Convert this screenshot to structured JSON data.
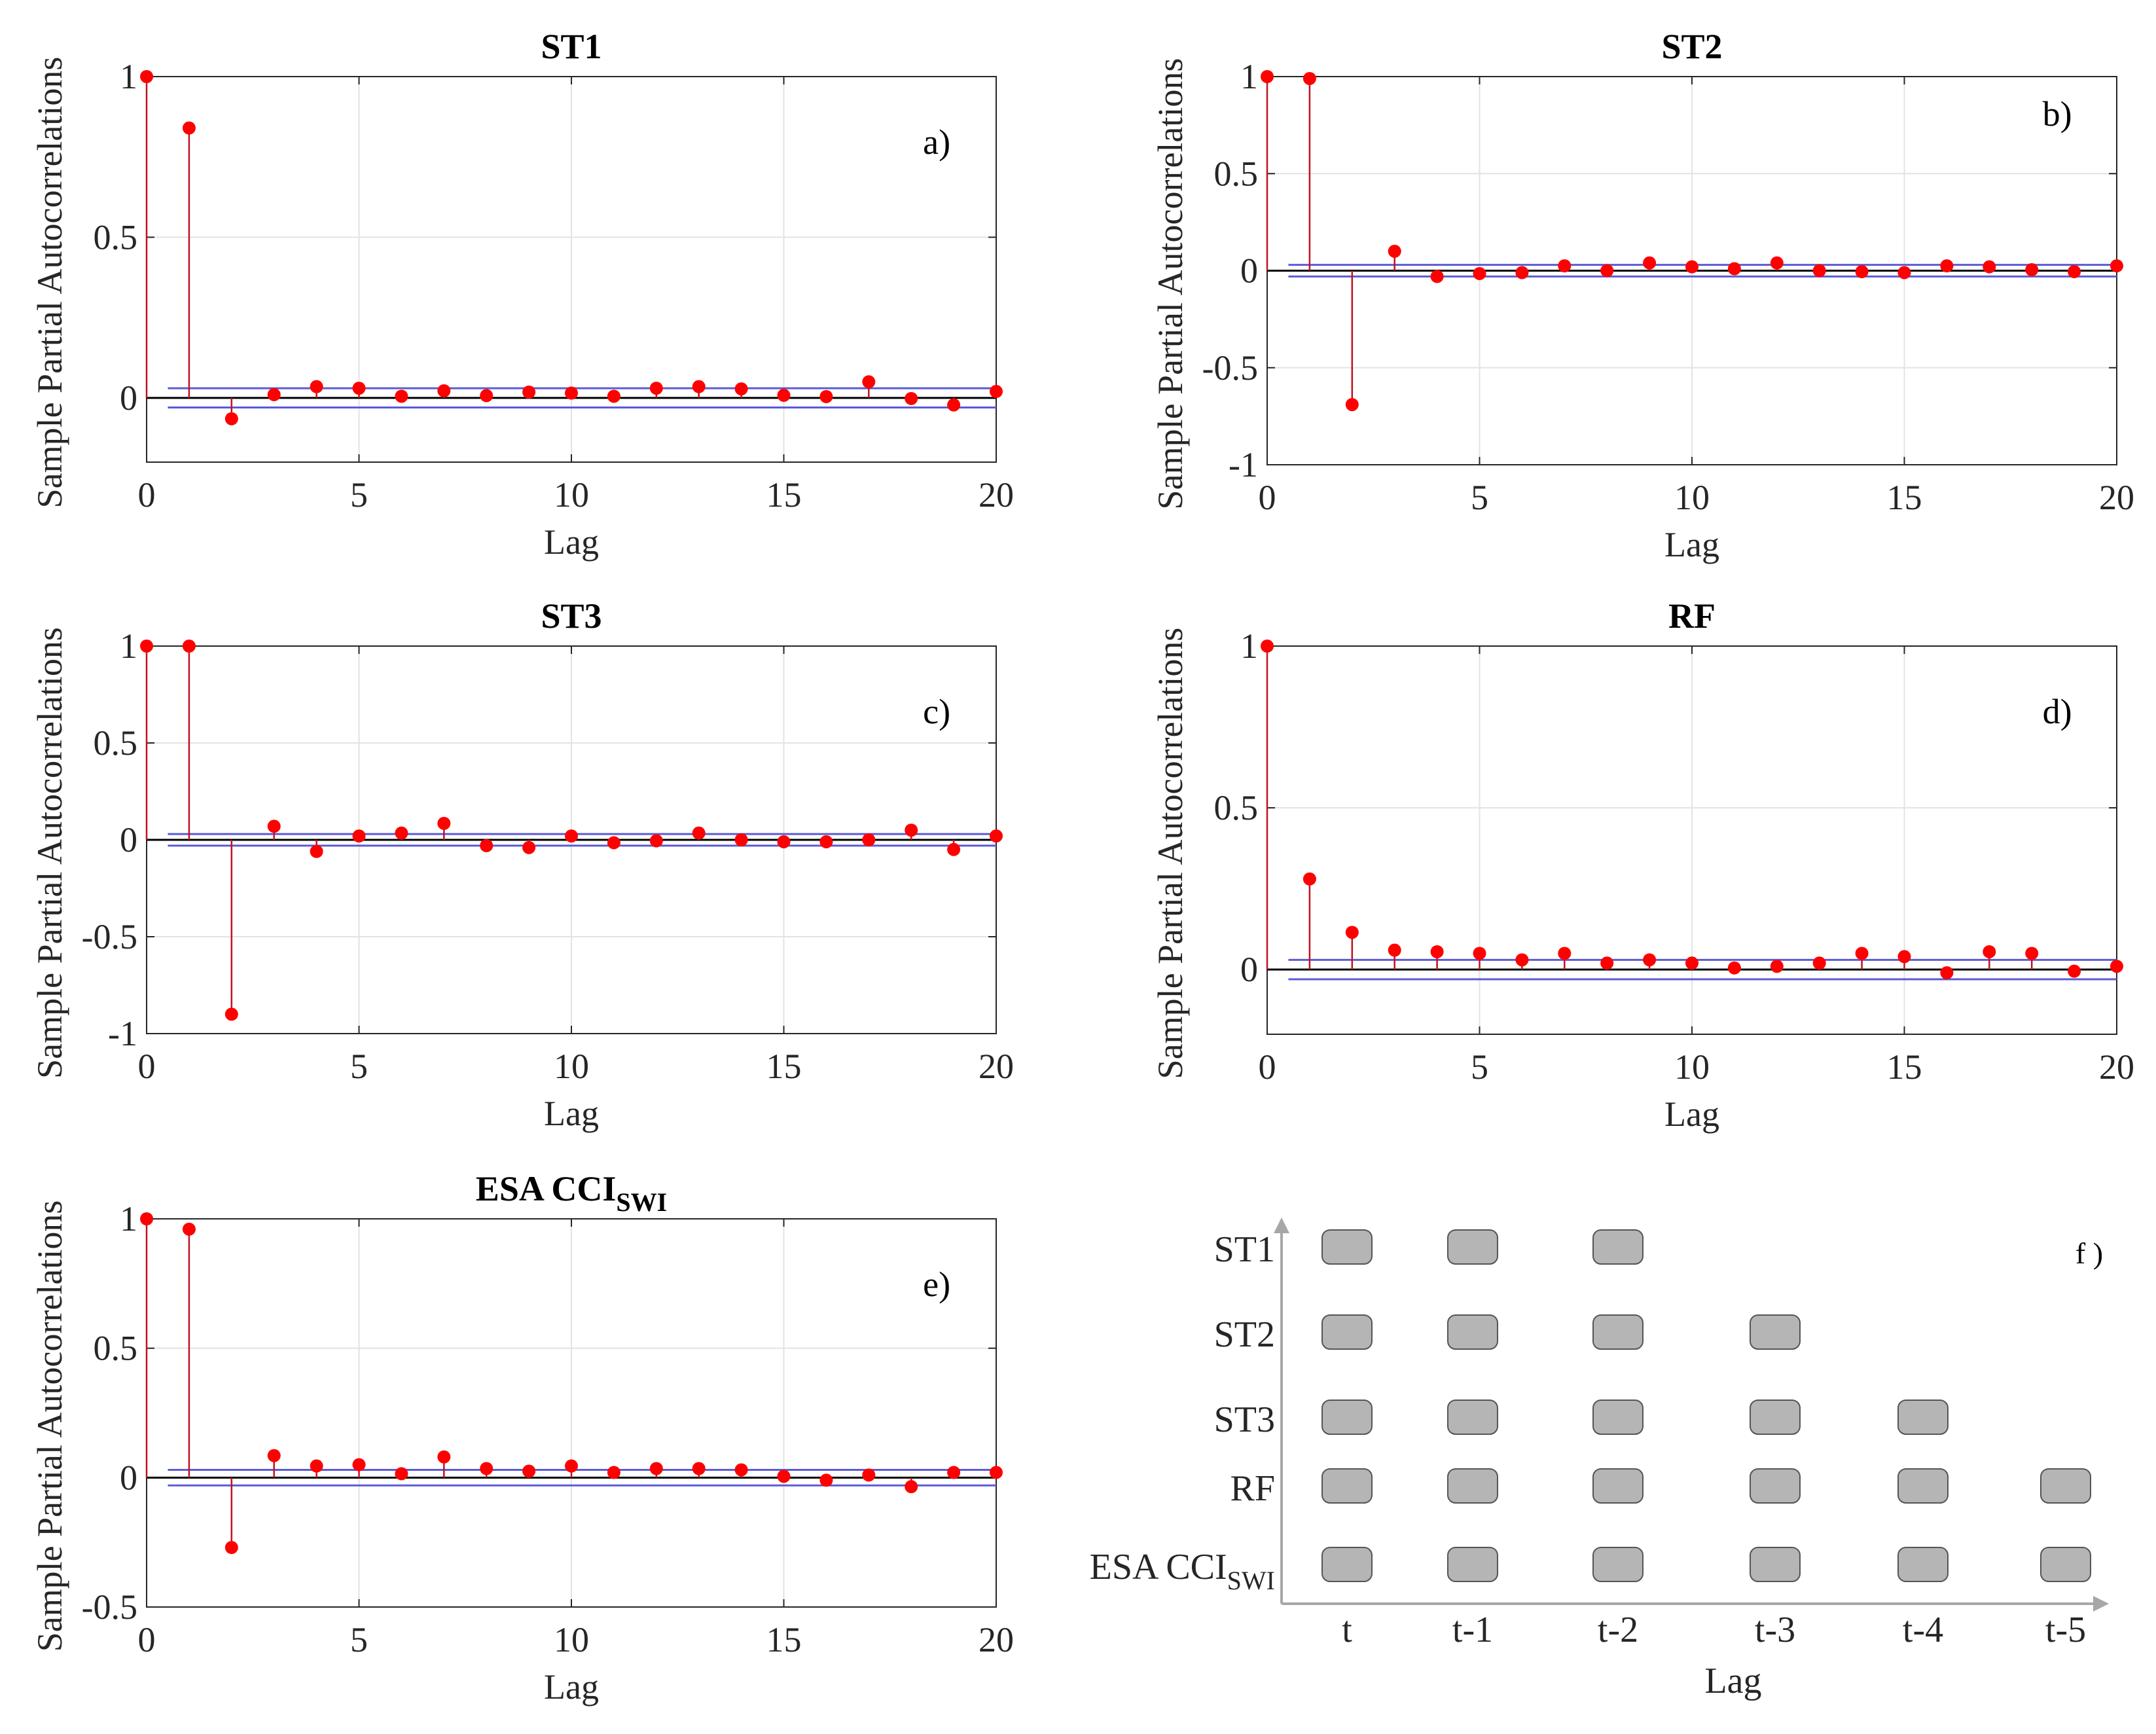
{
  "figure": {
    "y_label": "Sample Partial Autocorrelations",
    "x_label": "Lag",
    "colors": {
      "stem": "#c0121f",
      "marker": "#ff0000",
      "bound": "#5b5bd6",
      "zero": "#000000",
      "grid": "#e3e3e3",
      "box": "#b5b5b5",
      "arrow": "#a7a7a7"
    }
  },
  "chart_data": [
    {
      "type": "stem",
      "title": "ST1",
      "panel_label": "a)",
      "xlabel": "Lag",
      "ylabel": "Sample Partial Autocorrelations",
      "xlim": [
        0,
        20
      ],
      "ylim": [
        -0.2,
        1
      ],
      "xticks": [
        0,
        5,
        10,
        15,
        20
      ],
      "xtick_labels": [
        "0",
        "5",
        "10",
        "15",
        "20"
      ],
      "yticks": [
        0,
        0.5,
        1
      ],
      "ytick_labels": [
        "0",
        "0.5",
        "1"
      ],
      "confidence_bound": 0.03,
      "lags": [
        0,
        1,
        2,
        3,
        4,
        5,
        6,
        7,
        8,
        9,
        10,
        11,
        12,
        13,
        14,
        15,
        16,
        17,
        18,
        19,
        20
      ],
      "values": [
        1,
        0.84,
        -0.065,
        0.01,
        0.035,
        0.03,
        0.005,
        0.022,
        0.007,
        0.018,
        0.015,
        0.005,
        0.03,
        0.035,
        0.028,
        0.008,
        0.004,
        0.05,
        -0.002,
        -0.022,
        0.02
      ]
    },
    {
      "type": "stem",
      "title": "ST2",
      "panel_label": "b)",
      "xlabel": "Lag",
      "ylabel": "Sample Partial Autocorrelations",
      "xlim": [
        0,
        20
      ],
      "ylim": [
        -1,
        1
      ],
      "xticks": [
        0,
        5,
        10,
        15,
        20
      ],
      "xtick_labels": [
        "0",
        "5",
        "10",
        "15",
        "20"
      ],
      "yticks": [
        -1,
        -0.5,
        0,
        0.5,
        1
      ],
      "ytick_labels": [
        "-1",
        "-0.5",
        "0",
        "0.5",
        "1"
      ],
      "confidence_bound": 0.03,
      "lags": [
        0,
        1,
        2,
        3,
        4,
        5,
        6,
        7,
        8,
        9,
        10,
        11,
        12,
        13,
        14,
        15,
        16,
        17,
        18,
        19,
        20
      ],
      "values": [
        1,
        0.99,
        -0.69,
        0.1,
        -0.03,
        -0.015,
        -0.01,
        0.025,
        0.0,
        0.04,
        0.02,
        0.01,
        0.04,
        0.0,
        -0.005,
        -0.01,
        0.025,
        0.02,
        0.005,
        -0.005,
        0.025
      ]
    },
    {
      "type": "stem",
      "title": "ST3",
      "panel_label": "c)",
      "xlabel": "Lag",
      "ylabel": "Sample Partial Autocorrelations",
      "xlim": [
        0,
        20
      ],
      "ylim": [
        -1,
        1
      ],
      "xticks": [
        0,
        5,
        10,
        15,
        20
      ],
      "xtick_labels": [
        "0",
        "5",
        "10",
        "15",
        "20"
      ],
      "yticks": [
        -1,
        -0.5,
        0,
        0.5,
        1
      ],
      "ytick_labels": [
        "-1",
        "-0.5",
        "0",
        "0.5",
        "1"
      ],
      "confidence_bound": 0.03,
      "lags": [
        0,
        1,
        2,
        3,
        4,
        5,
        6,
        7,
        8,
        9,
        10,
        11,
        12,
        13,
        14,
        15,
        16,
        17,
        18,
        19,
        20
      ],
      "values": [
        1,
        1.0,
        -0.9,
        0.07,
        -0.06,
        0.02,
        0.035,
        0.085,
        -0.03,
        -0.04,
        0.02,
        -0.015,
        -0.005,
        0.035,
        0.0,
        -0.01,
        -0.01,
        0.0,
        0.05,
        -0.05,
        0.02
      ]
    },
    {
      "type": "stem",
      "title": "RF",
      "panel_label": "d)",
      "xlabel": "Lag",
      "ylabel": "Sample Partial Autocorrelations",
      "xlim": [
        0,
        20
      ],
      "ylim": [
        -0.2,
        1
      ],
      "xticks": [
        0,
        5,
        10,
        15,
        20
      ],
      "xtick_labels": [
        "0",
        "5",
        "10",
        "15",
        "20"
      ],
      "yticks": [
        0,
        0.5,
        1
      ],
      "ytick_labels": [
        "0",
        "0.5",
        "1"
      ],
      "confidence_bound": 0.03,
      "lags": [
        0,
        1,
        2,
        3,
        4,
        5,
        6,
        7,
        8,
        9,
        10,
        11,
        12,
        13,
        14,
        15,
        16,
        17,
        18,
        19,
        20
      ],
      "values": [
        1,
        0.28,
        0.115,
        0.06,
        0.055,
        0.05,
        0.03,
        0.05,
        0.02,
        0.03,
        0.02,
        0.005,
        0.01,
        0.02,
        0.05,
        0.04,
        -0.01,
        0.055,
        0.05,
        -0.005,
        0.01
      ]
    },
    {
      "type": "stem",
      "title": "ESA CCI",
      "title_subscript": "SWI",
      "panel_label": "e)",
      "xlabel": "Lag",
      "ylabel": "Sample Partial Autocorrelations",
      "xlim": [
        0,
        20
      ],
      "ylim": [
        -0.5,
        1
      ],
      "xticks": [
        0,
        5,
        10,
        15,
        20
      ],
      "xtick_labels": [
        "0",
        "5",
        "10",
        "15",
        "20"
      ],
      "yticks": [
        -0.5,
        0,
        0.5,
        1
      ],
      "ytick_labels": [
        "-0.5",
        "0",
        "0.5",
        "1"
      ],
      "confidence_bound": 0.03,
      "lags": [
        0,
        1,
        2,
        3,
        4,
        5,
        6,
        7,
        8,
        9,
        10,
        11,
        12,
        13,
        14,
        15,
        16,
        17,
        18,
        19,
        20
      ],
      "values": [
        1,
        0.96,
        -0.27,
        0.085,
        0.045,
        0.05,
        0.015,
        0.08,
        0.035,
        0.025,
        0.045,
        0.02,
        0.035,
        0.035,
        0.03,
        0.005,
        -0.01,
        0.01,
        -0.035,
        0.02,
        0.02
      ]
    }
  ],
  "lag_matrix": {
    "panel_label": "f )",
    "x_label": "Lag",
    "columns": [
      "t",
      "t-1",
      "t-2",
      "t-3",
      "t-4",
      "t-5"
    ],
    "rows": [
      {
        "label": "ST1",
        "subscript": "",
        "lags_used": 3
      },
      {
        "label": "ST2",
        "subscript": "",
        "lags_used": 4
      },
      {
        "label": "ST3",
        "subscript": "",
        "lags_used": 5
      },
      {
        "label": "RF",
        "subscript": "",
        "lags_used": 6
      },
      {
        "label": "ESA CCI",
        "subscript": "SWI",
        "lags_used": 6
      }
    ]
  }
}
